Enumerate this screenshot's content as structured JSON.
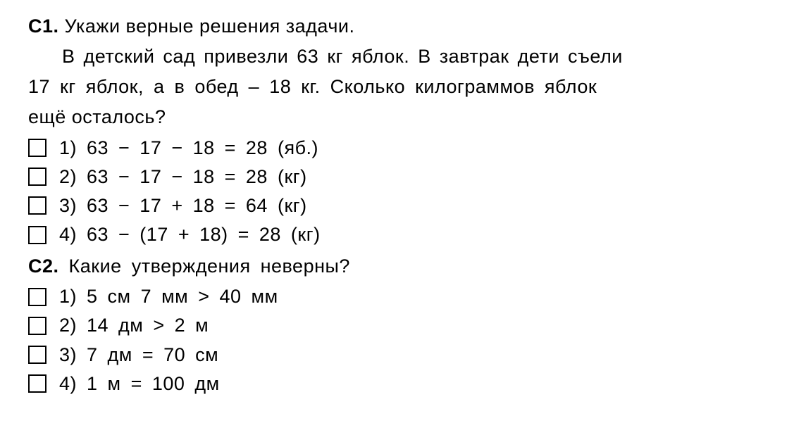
{
  "q1": {
    "label": "С1.",
    "prompt": "Укажи верные решения задачи.",
    "problem_l1": "В детский сад привезли 63 кг яблок. В завтрак дети съели",
    "problem_l2": "17 кг яблок, а в обед – 18 кг. Сколько килограммов яблок",
    "problem_l3": "ещё осталось?",
    "options": [
      "1) 63 − 17 − 18 = 28 (яб.)",
      "2) 63 − 17 − 18 = 28 (кг)",
      "3) 63 − 17 + 18 = 64 (кг)",
      "4) 63 − (17 + 18) = 28 (кг)"
    ]
  },
  "q2": {
    "label": "С2.",
    "prompt": "Какие утверждения неверны?",
    "options": [
      "1) 5 см 7 мм > 40 мм",
      "2) 14 дм > 2 м",
      "3) 7 дм = 70 см",
      "4) 1 м = 100 дм"
    ]
  },
  "style": {
    "text_color": "#000000",
    "background": "#ffffff",
    "font_size_pt": 20,
    "checkbox_border": "#000000"
  }
}
